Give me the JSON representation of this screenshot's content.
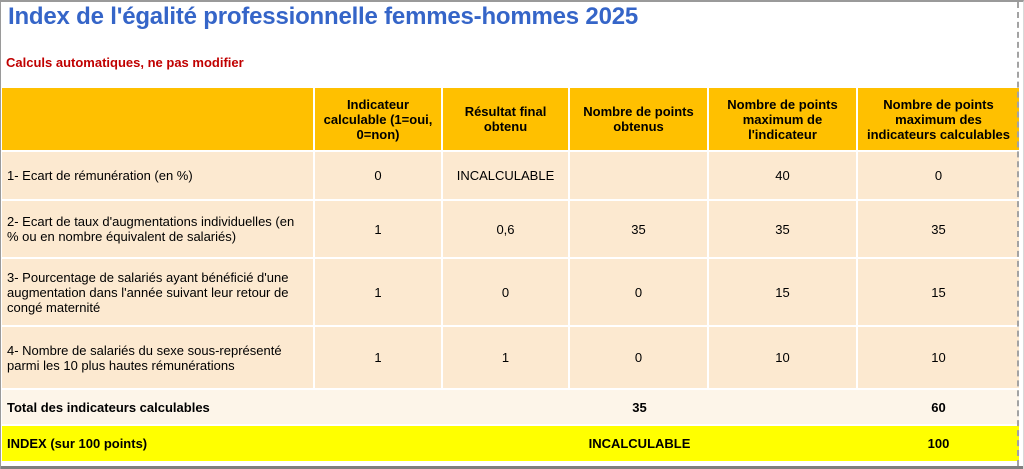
{
  "page": {
    "title": "Index de l'égalité professionnelle femmes-hommes 2025",
    "subtitle": "Calculs automatiques, ne pas modifier"
  },
  "colors": {
    "title_blue": "#3565c8",
    "subtitle_red": "#c00000",
    "header_gold": "#ffc000",
    "row_cream": "#fce9d0",
    "total_cream": "#fdf5e9",
    "index_yellow": "#ffff00",
    "dash_gray": "#a3a3a3"
  },
  "table": {
    "columns": [
      "",
      "Indicateur calculable (1=oui, 0=non)",
      "Résultat final obtenu",
      "Nombre de points obtenus",
      "Nombre de points maximum de l'indicateur",
      "Nombre de points maximum des indicateurs calculables"
    ],
    "rows": [
      {
        "label": "1- Ecart de rémunération (en %)",
        "calculable": "0",
        "resultat": "INCALCULABLE",
        "points_obtenus": "",
        "points_max_indicateur": "40",
        "points_max_calculables": "0"
      },
      {
        "label": "2- Ecart de taux d'augmentations individuelles (en % ou en nombre équivalent de salariés)",
        "calculable": "1",
        "resultat": "0,6",
        "points_obtenus": "35",
        "points_max_indicateur": "35",
        "points_max_calculables": "35"
      },
      {
        "label": "3- Pourcentage de salariés ayant bénéficié d'une augmentation dans l'année suivant leur retour de congé maternité",
        "calculable": "1",
        "resultat": "0",
        "points_obtenus": "0",
        "points_max_indicateur": "15",
        "points_max_calculables": "15"
      },
      {
        "label": "4- Nombre de salariés du sexe sous-représenté parmi les 10 plus hautes rémunérations",
        "calculable": "1",
        "resultat": "1",
        "points_obtenus": "0",
        "points_max_indicateur": "10",
        "points_max_calculables": "10"
      }
    ],
    "total_row": {
      "label": "Total des indicateurs calculables",
      "points_obtenus": "35",
      "points_max_calculables": "60"
    },
    "index_row": {
      "label": "INDEX (sur 100 points)",
      "points_obtenus": "INCALCULABLE",
      "points_max_calculables": "100"
    }
  }
}
